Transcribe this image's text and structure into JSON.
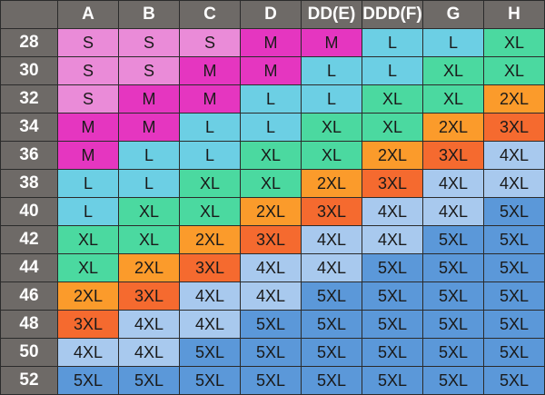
{
  "columns": [
    "A",
    "B",
    "C",
    "D",
    "DD(E)",
    "DDD(F)",
    "G",
    "H"
  ],
  "rows": [
    {
      "band": "28",
      "sizes": [
        "S",
        "S",
        "S",
        "M",
        "M",
        "L",
        "L",
        "XL"
      ]
    },
    {
      "band": "30",
      "sizes": [
        "S",
        "S",
        "M",
        "M",
        "L",
        "L",
        "XL",
        "XL"
      ]
    },
    {
      "band": "32",
      "sizes": [
        "S",
        "M",
        "M",
        "L",
        "L",
        "XL",
        "XL",
        "2XL"
      ]
    },
    {
      "band": "34",
      "sizes": [
        "M",
        "M",
        "L",
        "L",
        "XL",
        "XL",
        "2XL",
        "3XL"
      ]
    },
    {
      "band": "36",
      "sizes": [
        "M",
        "L",
        "L",
        "XL",
        "XL",
        "2XL",
        "3XL",
        "4XL"
      ]
    },
    {
      "band": "38",
      "sizes": [
        "L",
        "L",
        "XL",
        "XL",
        "2XL",
        "3XL",
        "4XL",
        "4XL"
      ]
    },
    {
      "band": "40",
      "sizes": [
        "L",
        "XL",
        "XL",
        "2XL",
        "3XL",
        "4XL",
        "4XL",
        "5XL"
      ]
    },
    {
      "band": "42",
      "sizes": [
        "XL",
        "XL",
        "2XL",
        "3XL",
        "4XL",
        "4XL",
        "5XL",
        "5XL"
      ]
    },
    {
      "band": "44",
      "sizes": [
        "XL",
        "2XL",
        "3XL",
        "4XL",
        "4XL",
        "5XL",
        "5XL",
        "5XL"
      ]
    },
    {
      "band": "46",
      "sizes": [
        "2XL",
        "3XL",
        "4XL",
        "4XL",
        "5XL",
        "5XL",
        "5XL",
        "5XL"
      ]
    },
    {
      "band": "48",
      "sizes": [
        "3XL",
        "4XL",
        "4XL",
        "5XL",
        "5XL",
        "5XL",
        "5XL",
        "5XL"
      ]
    },
    {
      "band": "50",
      "sizes": [
        "4XL",
        "4XL",
        "5XL",
        "5XL",
        "5XL",
        "5XL",
        "5XL",
        "5XL"
      ]
    },
    {
      "band": "52",
      "sizes": [
        "5XL",
        "5XL",
        "5XL",
        "5XL",
        "5XL",
        "5XL",
        "5XL",
        "5XL"
      ]
    }
  ],
  "size_colors": {
    "S": "#ea8bd8",
    "M": "#e536c0",
    "L": "#6ccfe4",
    "XL": "#4bd9a0",
    "2XL": "#fb9b2b",
    "3XL": "#f56a2f",
    "4XL": "#a8c9ee",
    "5XL": "#5b98d9"
  },
  "header_color": "#6e6a67"
}
